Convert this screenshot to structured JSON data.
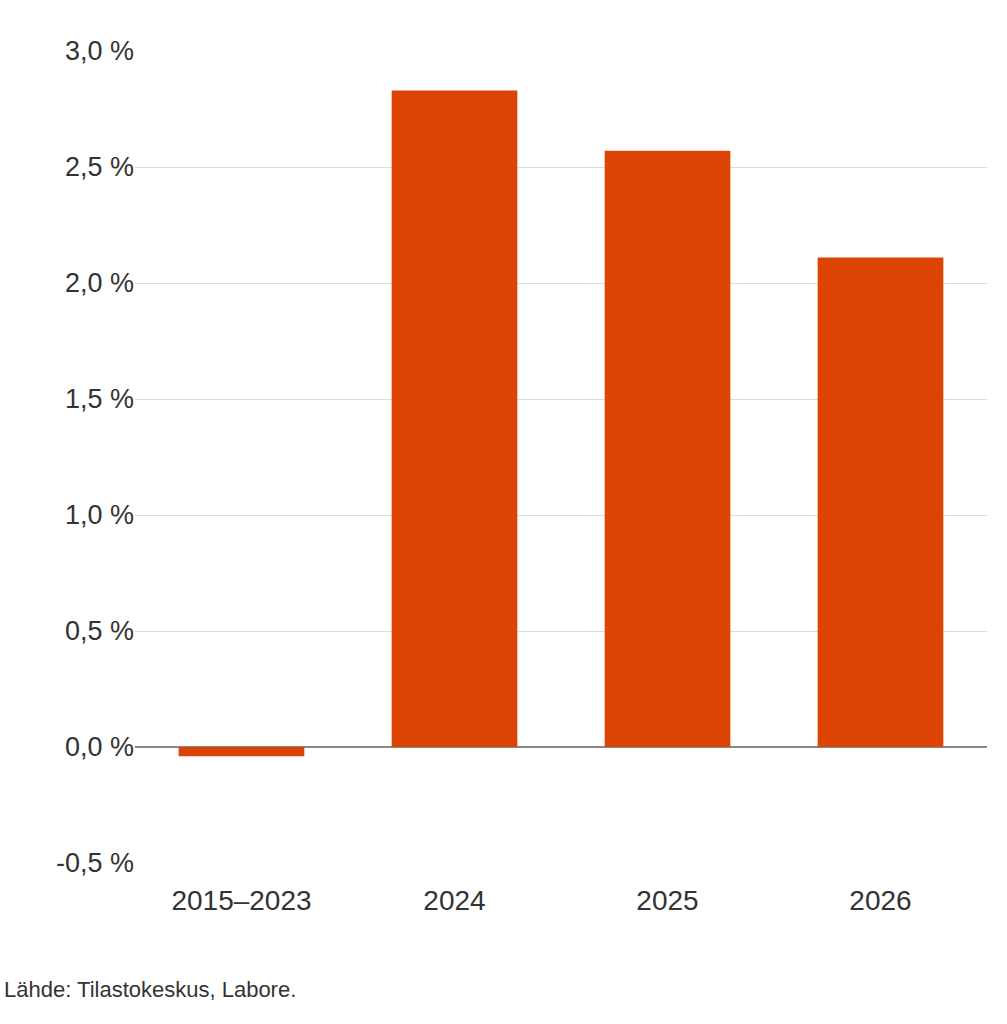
{
  "chart_data": {
    "type": "bar",
    "categories": [
      "2015–2023",
      "2024",
      "2025",
      "2026"
    ],
    "values": [
      -0.04,
      2.83,
      2.57,
      2.11
    ],
    "color": "#dc4405",
    "ylim": [
      -0.5,
      3.0
    ],
    "yticks": [
      {
        "value": -0.5,
        "label": "-0,5 %"
      },
      {
        "value": 0,
        "label": "0,0 %"
      },
      {
        "value": 0.5,
        "label": "0,5 %"
      },
      {
        "value": 1.0,
        "label": "1,0 %"
      },
      {
        "value": 1.5,
        "label": "1,5 %"
      },
      {
        "value": 2.0,
        "label": "2,0 %"
      },
      {
        "value": 2.5,
        "label": "2,5 %"
      },
      {
        "value": 3.0,
        "label": "3,0 %"
      }
    ],
    "grid": true,
    "annotations": [
      "Lähde: Tilastokeskus, Labore."
    ]
  }
}
